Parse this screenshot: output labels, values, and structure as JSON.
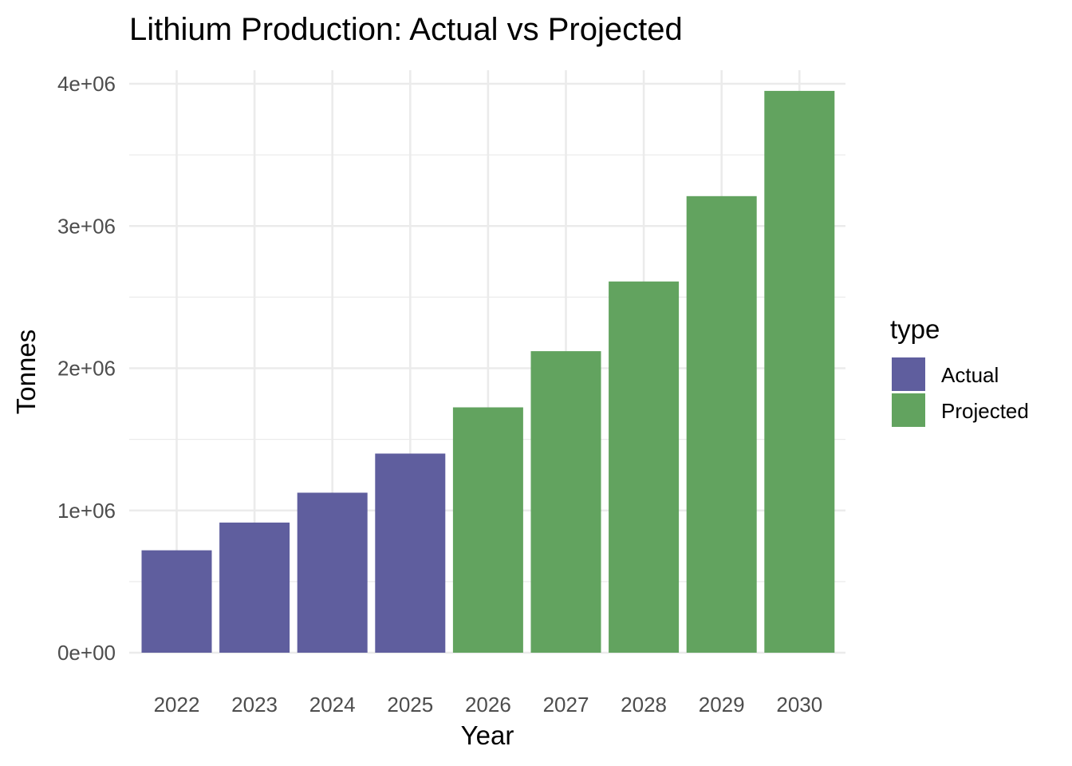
{
  "chart_data": {
    "type": "bar",
    "title": "Lithium Production: Actual vs Projected",
    "xlabel": "Year",
    "ylabel": "Tonnes",
    "categories": [
      "2022",
      "2023",
      "2024",
      "2025",
      "2026",
      "2027",
      "2028",
      "2029",
      "2030"
    ],
    "values": [
      720000,
      915000,
      1125000,
      1400000,
      1725000,
      2120000,
      2610000,
      3210000,
      3950000
    ],
    "series_type": [
      "Actual",
      "Actual",
      "Actual",
      "Actual",
      "Projected",
      "Projected",
      "Projected",
      "Projected",
      "Projected"
    ],
    "ylim": [
      0,
      4000000
    ],
    "y_ticks": [
      0,
      1000000,
      2000000,
      3000000,
      4000000
    ],
    "y_tick_labels": [
      "0e+00",
      "1e+06",
      "2e+06",
      "3e+06",
      "4e+06"
    ],
    "grid": true,
    "legend": {
      "title": "type",
      "position": "right",
      "entries": [
        {
          "label": "Actual",
          "color": "#5F5E9E"
        },
        {
          "label": "Projected",
          "color": "#62A35F"
        }
      ]
    }
  }
}
